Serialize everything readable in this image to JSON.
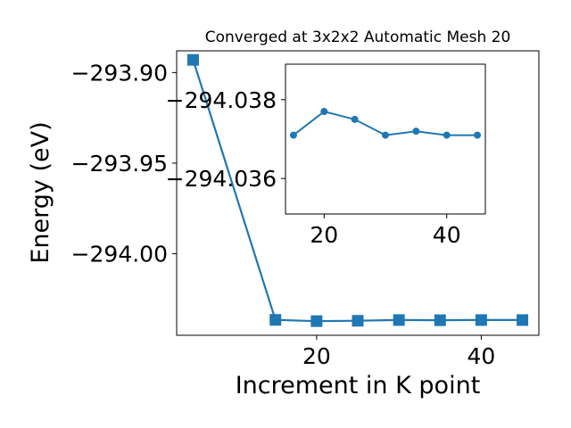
{
  "chart_data": [
    {
      "type": "line",
      "title": "Converged at 3x2x2 Automatic Mesh 20",
      "xlabel": "Increment in K point",
      "ylabel": "Energy (eV)",
      "xlim": [
        3,
        47
      ],
      "ylim": [
        -294.045,
        -293.888
      ],
      "xticks": [
        20,
        40
      ],
      "yticks": [
        -293.9,
        -293.95,
        -294.0
      ],
      "ytick_labels": [
        "−293.90",
        "−293.95",
        "−294.00"
      ],
      "xtick_labels": [
        "20",
        "40"
      ],
      "marker": "square",
      "color": "#1f77b4",
      "grid": false,
      "x": [
        5,
        15,
        20,
        25,
        30,
        35,
        40,
        45
      ],
      "y": [
        -293.893,
        -294.0365,
        -294.0372,
        -294.037,
        -294.0366,
        -294.0367,
        -294.0366,
        -294.0366
      ]
    },
    {
      "type": "line",
      "inset": true,
      "xlim": [
        13.7,
        46.3
      ],
      "ylim": [
        -294.0351,
        -294.0389
      ],
      "xticks": [
        20,
        40
      ],
      "yticks": [
        -294.038,
        -294.036
      ],
      "ytick_labels": [
        "−294.038",
        "−294.036"
      ],
      "xtick_labels": [
        "20",
        "40"
      ],
      "marker": "circle",
      "color": "#1f77b4",
      "grid": false,
      "x": [
        15,
        20,
        25,
        30,
        35,
        40,
        45
      ],
      "y": [
        -294.0371,
        -294.0377,
        -294.0375,
        -294.0371,
        -294.0372,
        -294.0371,
        -294.0371
      ]
    }
  ]
}
